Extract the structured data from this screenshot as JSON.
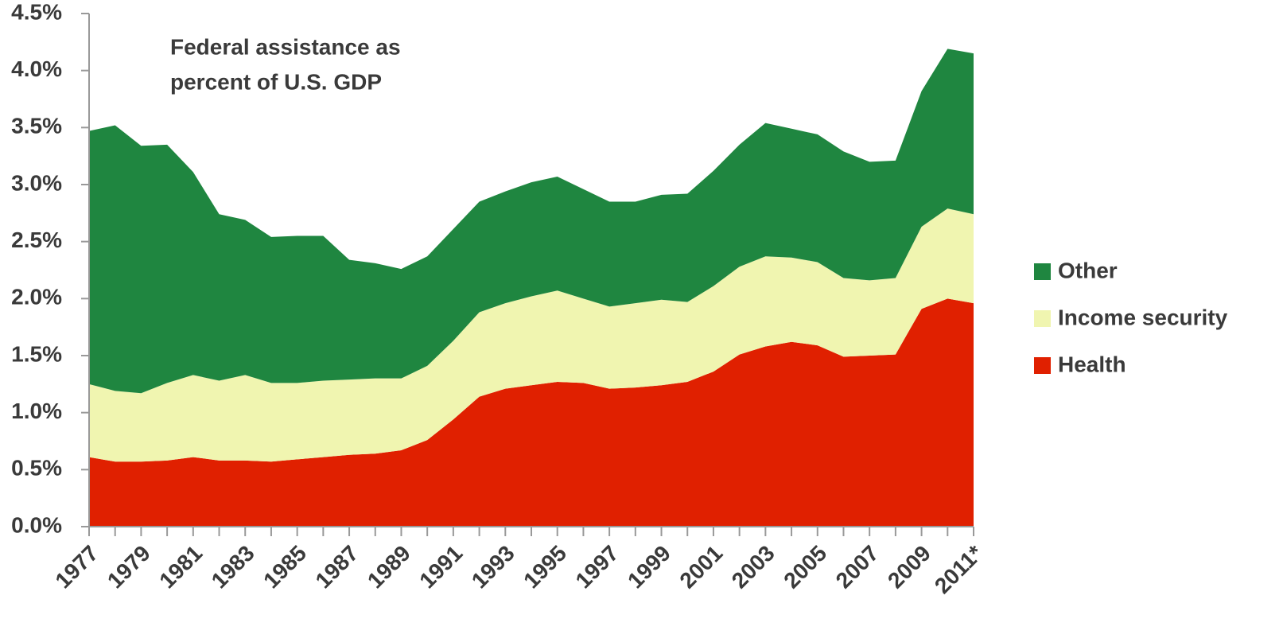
{
  "chart_data": {
    "type": "stacked_area",
    "title": [
      "Federal assistance as",
      "percent of U.S. GDP"
    ],
    "categories": [
      "1977",
      null,
      "1979",
      null,
      "1981",
      null,
      "1983",
      null,
      "1985",
      null,
      "1987",
      null,
      "1989",
      null,
      "1991",
      null,
      "1993",
      null,
      "1995",
      null,
      "1997",
      null,
      "1999",
      null,
      "2001",
      null,
      "2003",
      null,
      "2005",
      null,
      "2007",
      null,
      "2009",
      null,
      "2011*"
    ],
    "series": [
      {
        "name": "Health",
        "color": "#e02000",
        "values": [
          0.61,
          0.57,
          0.57,
          0.58,
          0.61,
          0.58,
          0.58,
          0.57,
          0.59,
          0.61,
          0.63,
          0.64,
          0.67,
          0.76,
          0.94,
          1.14,
          1.21,
          1.24,
          1.27,
          1.26,
          1.21,
          1.22,
          1.24,
          1.27,
          1.36,
          1.51,
          1.58,
          1.62,
          1.59,
          1.49,
          1.5,
          1.51,
          1.91,
          2.0,
          1.96
        ]
      },
      {
        "name": "Income security",
        "color": "#f0f5b0",
        "values": [
          0.64,
          0.62,
          0.6,
          0.68,
          0.72,
          0.7,
          0.75,
          0.69,
          0.67,
          0.67,
          0.66,
          0.66,
          0.63,
          0.65,
          0.69,
          0.74,
          0.75,
          0.78,
          0.8,
          0.74,
          0.72,
          0.74,
          0.75,
          0.7,
          0.75,
          0.77,
          0.79,
          0.74,
          0.73,
          0.69,
          0.66,
          0.67,
          0.72,
          0.79,
          0.78
        ]
      },
      {
        "name": "Other",
        "color": "#1f8640",
        "values": [
          2.22,
          2.33,
          2.17,
          2.09,
          1.78,
          1.46,
          1.36,
          1.28,
          1.29,
          1.27,
          1.05,
          1.01,
          0.96,
          0.96,
          0.98,
          0.97,
          0.98,
          1.0,
          1.0,
          0.96,
          0.92,
          0.89,
          0.92,
          0.95,
          1.01,
          1.07,
          1.17,
          1.13,
          1.12,
          1.11,
          1.04,
          1.03,
          1.19,
          1.4,
          1.41
        ]
      }
    ],
    "ylim": [
      0,
      4.5
    ],
    "yticks": [
      {
        "value": 0,
        "label": "0.0%"
      },
      {
        "value": 0.5,
        "label": "0.5%"
      },
      {
        "value": 1,
        "label": "1.0%"
      },
      {
        "value": 1.5,
        "label": "1.5%"
      },
      {
        "value": 2,
        "label": "2.0%"
      },
      {
        "value": 2.5,
        "label": "2.5%"
      },
      {
        "value": 3,
        "label": "3.0%"
      },
      {
        "value": 3.5,
        "label": "3.5%"
      },
      {
        "value": 4,
        "label": "4.0%"
      },
      {
        "value": 4.5,
        "label": "4.5%"
      }
    ],
    "legend": "right"
  }
}
